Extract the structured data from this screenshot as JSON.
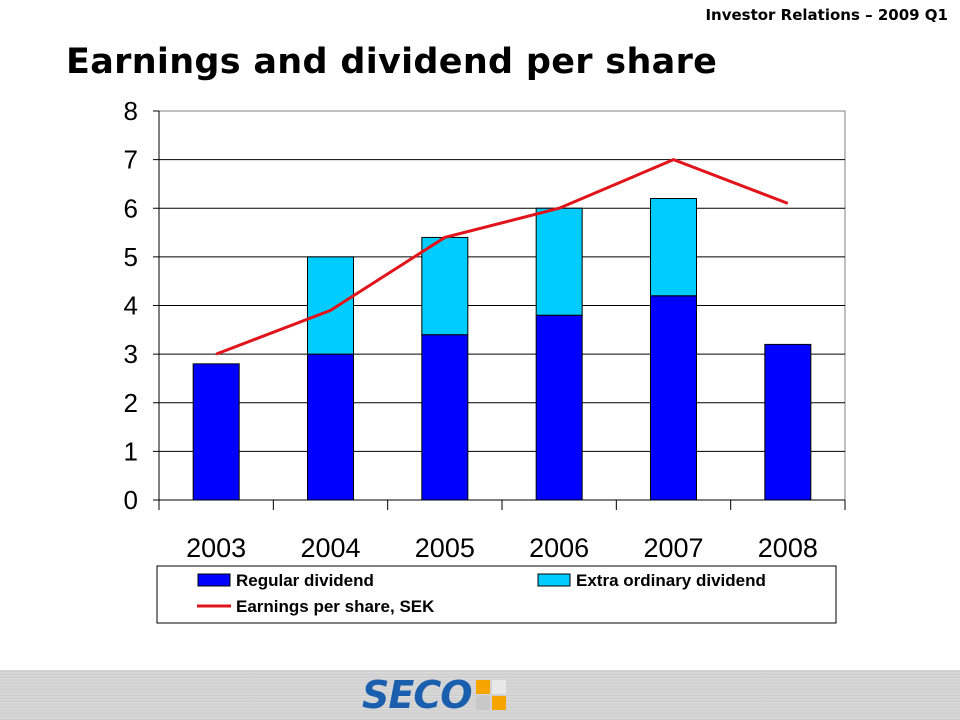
{
  "header": {
    "subtitle": "Investor Relations – 2009 Q1"
  },
  "page": {
    "title": "Earnings and dividend per share"
  },
  "footer": {
    "logo_text": "SECO"
  },
  "colors": {
    "regular": "#0000ff",
    "extra": "#00ccff",
    "eps": "#e0141a"
  },
  "chart_data": {
    "type": "bar",
    "stacked": true,
    "categories": [
      "2003",
      "2004",
      "2005",
      "2006",
      "2007",
      "2008"
    ],
    "series": [
      {
        "name": "Regular dividend",
        "kind": "bar",
        "values": [
          2.8,
          3.0,
          3.4,
          3.8,
          4.2,
          3.2
        ]
      },
      {
        "name": "Extra ordinary dividend",
        "kind": "bar",
        "values": [
          0,
          2.0,
          2.0,
          2.2,
          2.0,
          0
        ]
      },
      {
        "name": "Earnings per share, SEK",
        "kind": "line",
        "values": [
          3.0,
          3.9,
          5.4,
          6.0,
          7.0,
          6.1
        ]
      }
    ],
    "y_ticks": [
      "0",
      "1",
      "2",
      "3",
      "4",
      "5",
      "6",
      "7",
      "8"
    ],
    "ylim": [
      0,
      8
    ],
    "grid": true,
    "legend": "bottom"
  }
}
